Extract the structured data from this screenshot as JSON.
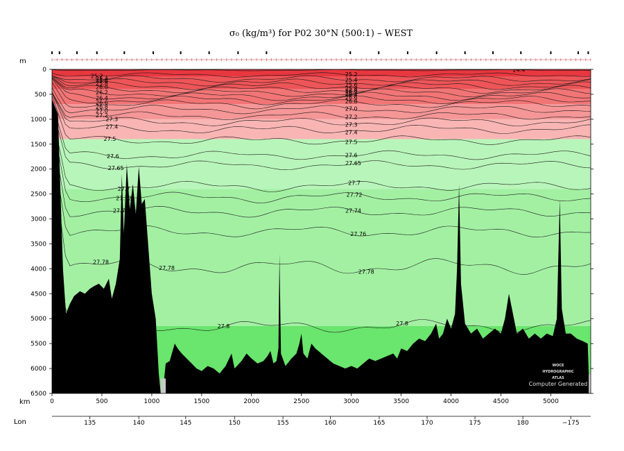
{
  "chart_data": {
    "type": "heatmap",
    "title": "σ₀ (kg/m³) for P02 30°N (500:1) – WEST",
    "y_axis_label": "m",
    "x_axis_label": "km",
    "lon_axis_label": "Lon",
    "xlim_km": [
      0,
      5400
    ],
    "ylim_m": [
      6500,
      0
    ],
    "depth_ticks": [
      0,
      500,
      1000,
      1500,
      2000,
      2500,
      3000,
      3500,
      4000,
      4500,
      5000,
      5500,
      6000,
      6500
    ],
    "km_ticks": [
      0,
      500,
      1000,
      1500,
      2000,
      2500,
      3000,
      3500,
      4000,
      4500,
      5000
    ],
    "lon_ticks": [
      {
        "label": "135",
        "km": 380
      },
      {
        "label": "140",
        "km": 870
      },
      {
        "label": "145",
        "km": 1340
      },
      {
        "label": "150",
        "km": 1830
      },
      {
        "label": "155",
        "km": 2315
      },
      {
        "label": "160",
        "km": 2790
      },
      {
        "label": "165",
        "km": 3280
      },
      {
        "label": "170",
        "km": 3760
      },
      {
        "label": "175",
        "km": 4240
      },
      {
        "label": "180",
        "km": 4720
      },
      {
        "label": "−175",
        "km": 5200
      }
    ],
    "station_km": [
      0,
      75,
      250,
      450,
      725,
      1015,
      1290,
      1575,
      1865,
      2150,
      2990,
      3275,
      3565,
      3855,
      4140,
      4420,
      4700,
      5000,
      5275,
      5375
    ],
    "contours": [
      {
        "level": "24.4",
        "depth_m": 15,
        "amp": 8,
        "label_km": [
          4680
        ]
      },
      {
        "level": "25.2",
        "depth_m": 110,
        "amp": 30,
        "label_km": [
          450,
          3000
        ]
      },
      {
        "level": "25.4",
        "depth_m": 190,
        "amp": 45,
        "label_km": [
          500,
          3000
        ]
      },
      {
        "level": "25.6",
        "depth_m": 260,
        "amp": 50,
        "label_km": [
          500,
          3000
        ]
      },
      {
        "level": "25.8",
        "depth_m": 330,
        "amp": 55,
        "label_km": [
          500,
          3000
        ]
      },
      {
        "level": "26.0",
        "depth_m": 400,
        "amp": 55,
        "label_km": [
          500,
          3000
        ]
      },
      {
        "level": "26.2",
        "depth_m": 470,
        "amp": 55,
        "label_km": [
          500,
          3000
        ]
      },
      {
        "level": "26.4",
        "depth_m": 540,
        "amp": 55,
        "label_km": [
          500,
          3000
        ]
      },
      {
        "level": "26.6",
        "depth_m": 610,
        "amp": 55,
        "label_km": [
          500,
          3000
        ]
      },
      {
        "level": "26.8",
        "depth_m": 690,
        "amp": 55,
        "label_km": [
          500,
          3000
        ]
      },
      {
        "level": "27.0",
        "depth_m": 800,
        "amp": 55,
        "label_km": [
          500,
          3000
        ]
      },
      {
        "level": "27.2",
        "depth_m": 930,
        "amp": 55,
        "label_km": [
          500,
          3000
        ]
      },
      {
        "level": "27.3",
        "depth_m": 1050,
        "amp": 60,
        "label_km": [
          600,
          3000
        ]
      },
      {
        "level": "27.4",
        "depth_m": 1200,
        "amp": 60,
        "label_km": [
          600,
          3000
        ]
      },
      {
        "level": "27.5",
        "depth_m": 1420,
        "amp": 60,
        "label_km": [
          580,
          3000
        ]
      },
      {
        "level": "27.6",
        "depth_m": 1720,
        "amp": 60,
        "label_km": [
          610,
          3000
        ]
      },
      {
        "level": "27.65",
        "depth_m": 1920,
        "amp": 60,
        "label_km": [
          640,
          3020
        ]
      },
      {
        "level": "27.7",
        "depth_m": 2340,
        "amp": 65,
        "label_km": [
          720,
          3030
        ]
      },
      {
        "level": "27.72",
        "depth_m": 2560,
        "amp": 65,
        "label_km": [
          720,
          3030
        ]
      },
      {
        "level": "27.74",
        "depth_m": 2850,
        "amp": 70,
        "label_km": [
          690,
          3020
        ]
      },
      {
        "level": "27.76",
        "depth_m": 3250,
        "amp": 80,
        "label_km": [
          3070
        ]
      },
      {
        "level": "27.78",
        "depth_m": 3950,
        "amp": 110,
        "label_km": [
          490,
          1150,
          3150
        ]
      },
      {
        "level": "27.8",
        "depth_m": 5150,
        "amp": 90,
        "label_km": [
          1720,
          3510
        ]
      }
    ],
    "bathymetry": [
      [
        0,
        600
      ],
      [
        20,
        700
      ],
      [
        60,
        900
      ],
      [
        110,
        4000
      ],
      [
        140,
        4900
      ],
      [
        180,
        4700
      ],
      [
        220,
        4550
      ],
      [
        280,
        4450
      ],
      [
        330,
        4500
      ],
      [
        380,
        4400
      ],
      [
        420,
        4350
      ],
      [
        470,
        4300
      ],
      [
        520,
        4400
      ],
      [
        570,
        4200
      ],
      [
        600,
        4600
      ],
      [
        640,
        4300
      ],
      [
        680,
        3800
      ],
      [
        700,
        2100
      ],
      [
        720,
        3300
      ],
      [
        750,
        1900
      ],
      [
        780,
        2800
      ],
      [
        810,
        2300
      ],
      [
        840,
        2900
      ],
      [
        870,
        1950
      ],
      [
        900,
        2700
      ],
      [
        930,
        2600
      ],
      [
        960,
        3400
      ],
      [
        1000,
        4500
      ],
      [
        1040,
        5000
      ],
      [
        1070,
        6100
      ],
      [
        1090,
        6500
      ],
      [
        1110,
        6500
      ],
      [
        1140,
        5900
      ],
      [
        1180,
        5850
      ],
      [
        1230,
        5500
      ],
      [
        1260,
        5600
      ],
      [
        1300,
        5700
      ],
      [
        1350,
        5800
      ],
      [
        1400,
        5900
      ],
      [
        1450,
        6000
      ],
      [
        1500,
        6050
      ],
      [
        1560,
        5950
      ],
      [
        1620,
        6000
      ],
      [
        1680,
        6100
      ],
      [
        1740,
        5950
      ],
      [
        1800,
        5700
      ],
      [
        1830,
        6000
      ],
      [
        1900,
        5850
      ],
      [
        1950,
        5700
      ],
      [
        2000,
        5800
      ],
      [
        2060,
        5900
      ],
      [
        2120,
        5850
      ],
      [
        2160,
        5750
      ],
      [
        2190,
        5650
      ],
      [
        2220,
        5900
      ],
      [
        2250,
        5850
      ],
      [
        2270,
        5600
      ],
      [
        2280,
        3700
      ],
      [
        2295,
        5700
      ],
      [
        2340,
        5950
      ],
      [
        2400,
        5800
      ],
      [
        2450,
        5700
      ],
      [
        2480,
        5500
      ],
      [
        2500,
        5300
      ],
      [
        2520,
        5700
      ],
      [
        2560,
        5800
      ],
      [
        2600,
        5500
      ],
      [
        2640,
        5600
      ],
      [
        2700,
        5700
      ],
      [
        2760,
        5800
      ],
      [
        2820,
        5900
      ],
      [
        2880,
        5950
      ],
      [
        2940,
        6000
      ],
      [
        3000,
        5950
      ],
      [
        3060,
        6000
      ],
      [
        3120,
        5900
      ],
      [
        3180,
        5800
      ],
      [
        3240,
        5850
      ],
      [
        3300,
        5800
      ],
      [
        3360,
        5750
      ],
      [
        3420,
        5700
      ],
      [
        3460,
        5800
      ],
      [
        3500,
        5600
      ],
      [
        3560,
        5650
      ],
      [
        3620,
        5500
      ],
      [
        3680,
        5400
      ],
      [
        3740,
        5450
      ],
      [
        3800,
        5300
      ],
      [
        3850,
        5100
      ],
      [
        3880,
        5400
      ],
      [
        3920,
        5300
      ],
      [
        3960,
        5000
      ],
      [
        4000,
        5200
      ],
      [
        4040,
        4900
      ],
      [
        4060,
        4000
      ],
      [
        4080,
        2300
      ],
      [
        4100,
        4300
      ],
      [
        4140,
        5100
      ],
      [
        4200,
        5300
      ],
      [
        4260,
        5200
      ],
      [
        4320,
        5400
      ],
      [
        4380,
        5300
      ],
      [
        4440,
        5200
      ],
      [
        4500,
        5300
      ],
      [
        4540,
        5000
      ],
      [
        4580,
        4500
      ],
      [
        4620,
        4900
      ],
      [
        4660,
        5300
      ],
      [
        4720,
        5200
      ],
      [
        4780,
        5400
      ],
      [
        4840,
        5300
      ],
      [
        4900,
        5400
      ],
      [
        4960,
        5300
      ],
      [
        5020,
        5350
      ],
      [
        5060,
        5000
      ],
      [
        5090,
        2600
      ],
      [
        5110,
        4800
      ],
      [
        5150,
        5300
      ],
      [
        5200,
        5300
      ],
      [
        5260,
        5400
      ],
      [
        5320,
        5450
      ],
      [
        5370,
        5500
      ],
      [
        5380,
        6100
      ],
      [
        5400,
        6100
      ]
    ],
    "fill_bands": [
      {
        "from_m": 0,
        "to_m": 150,
        "color": "#e8373f"
      },
      {
        "from_m": 150,
        "to_m": 400,
        "color": "#ee5558"
      },
      {
        "from_m": 400,
        "to_m": 700,
        "color": "#f27576"
      },
      {
        "from_m": 700,
        "to_m": 1000,
        "color": "#f59697"
      },
      {
        "from_m": 1000,
        "to_m": 1400,
        "color": "#f8b5b3"
      },
      {
        "from_m": 1400,
        "to_m": 2400,
        "color": "#b8f5ba"
      },
      {
        "from_m": 2400,
        "to_m": 5150,
        "color": "#a3f0a3"
      },
      {
        "from_m": 5150,
        "to_m": 6500,
        "color": "#6ae56d"
      }
    ],
    "colors": {
      "bottom": "#000000",
      "no_data": "#c8c8c8",
      "contour": "#1a1a1a"
    },
    "watermark": [
      "WOCE",
      "HYDROGRAPHIC",
      "ATLAS"
    ],
    "footer_note": "Computer Generated",
    "grid": false
  }
}
